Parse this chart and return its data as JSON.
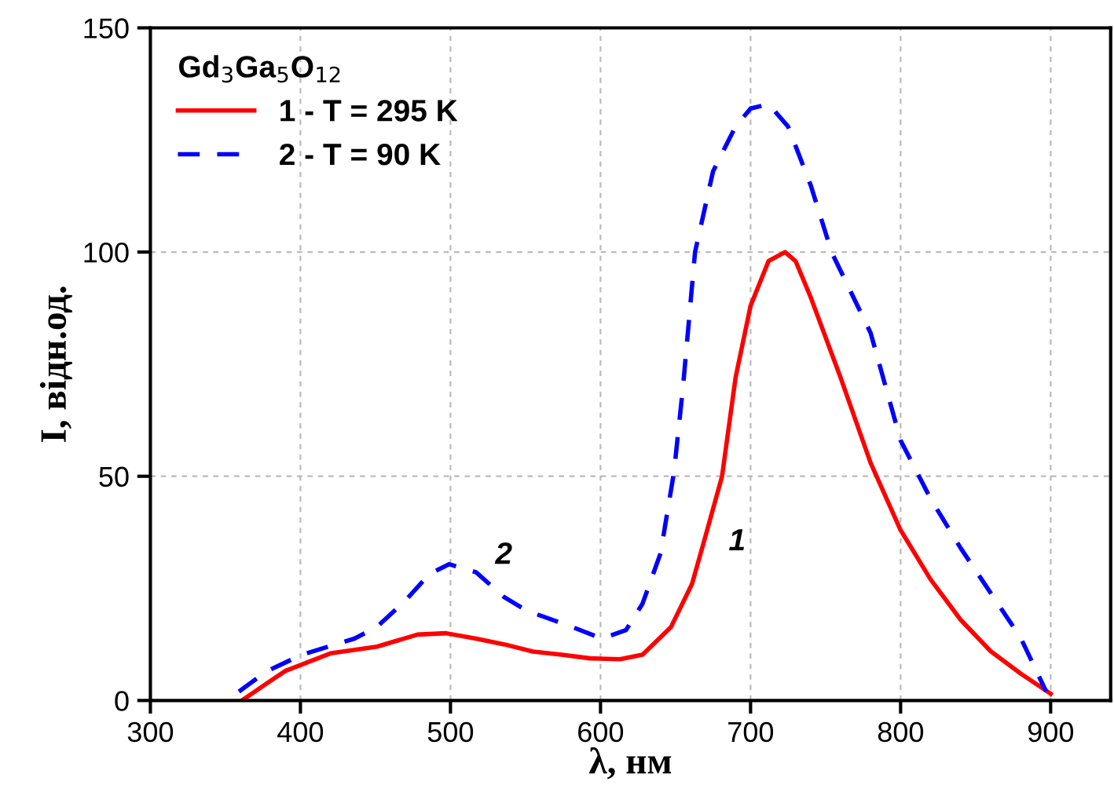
{
  "chart_data": {
    "type": "line",
    "xlabel": "λ, нм",
    "ylabel": "I, відн.од.",
    "legend_title": "Gd$_{3}$Ga$_{5}$O$_{12}$",
    "xlim": [
      300,
      940
    ],
    "ylim": [
      0,
      150
    ],
    "xticks": [
      300,
      400,
      500,
      600,
      700,
      800,
      900
    ],
    "yticks": [
      0,
      50,
      100,
      150
    ],
    "grid": true,
    "legend": "top left",
    "marker": "none",
    "series": [
      {
        "name": "1 - T = 295 K",
        "color": "#ff0000",
        "line_style": "solid",
        "x": [
          361,
          378,
          390,
          420,
          451,
          478,
          497,
          517,
          536,
          555,
          574,
          593,
          613,
          628,
          647,
          661,
          670,
          681,
          690,
          700,
          712,
          723,
          730,
          740,
          760,
          780,
          800,
          820,
          840,
          860,
          880,
          900
        ],
        "values": [
          0,
          3.9,
          6.6,
          10.5,
          12,
          14.7,
          15,
          13.8,
          12.5,
          10.9,
          10.2,
          9.4,
          9.2,
          10.2,
          16.4,
          26,
          36.7,
          50,
          72,
          88,
          98,
          100,
          98,
          90,
          72,
          53,
          38,
          27,
          18,
          11,
          6,
          1.5
        ]
      },
      {
        "name": "2 - T = 90 K",
        "color": "#0000ff",
        "line_style": "dashed",
        "x": [
          359,
          378,
          401,
          436,
          451,
          470,
          486,
          499,
          517,
          536,
          551,
          578,
          601,
          617,
          628,
          640,
          649,
          655,
          663,
          675,
          690,
          700,
          712,
          725,
          740,
          754,
          780,
          800,
          820,
          840,
          860,
          880,
          897
        ],
        "values": [
          2,
          6.6,
          10.2,
          13.8,
          16.4,
          22.3,
          28.2,
          30.4,
          28.6,
          23,
          20,
          16.8,
          13.8,
          15.7,
          21.6,
          32.8,
          51,
          70,
          100,
          118,
          128,
          132,
          133,
          128,
          115,
          100,
          82,
          58,
          45,
          34,
          24,
          14,
          2
        ]
      }
    ],
    "annotations": [
      "1",
      "2"
    ]
  }
}
